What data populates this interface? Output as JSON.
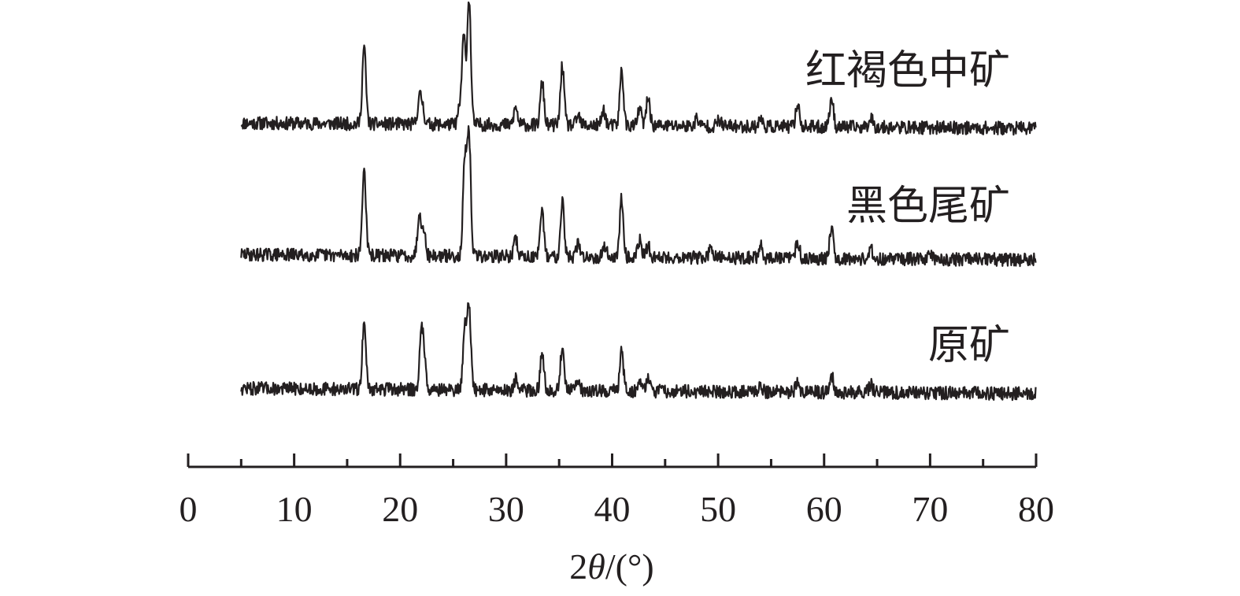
{
  "chart_data": {
    "type": "line",
    "title": "",
    "xlabel_parts": {
      "prefix": "2",
      "symbol": "θ",
      "suffix": "/(°)"
    },
    "ylabel": "",
    "xlim": [
      0,
      80
    ],
    "x_ticks": [
      0,
      10,
      20,
      30,
      40,
      50,
      60,
      70,
      80
    ],
    "x_minor_ticks": [
      5,
      15,
      25,
      35,
      45,
      55,
      65,
      75
    ],
    "x_range_measured": [
      5,
      80
    ],
    "grid": false,
    "legend": "none",
    "series": [
      {
        "name": "红褐色中矿",
        "baseline": 12,
        "peaks": [
          {
            "x": 16.6,
            "y": 98
          },
          {
            "x": 21.8,
            "y": 30
          },
          {
            "x": 22.1,
            "y": 22
          },
          {
            "x": 25.6,
            "y": 18
          },
          {
            "x": 26.0,
            "y": 110
          },
          {
            "x": 26.5,
            "y": 160
          },
          {
            "x": 30.9,
            "y": 22
          },
          {
            "x": 33.4,
            "y": 54
          },
          {
            "x": 35.3,
            "y": 76
          },
          {
            "x": 36.8,
            "y": 12
          },
          {
            "x": 39.2,
            "y": 20
          },
          {
            "x": 40.9,
            "y": 70
          },
          {
            "x": 42.6,
            "y": 22
          },
          {
            "x": 43.4,
            "y": 36
          },
          {
            "x": 48.0,
            "y": 10
          },
          {
            "x": 50.1,
            "y": 8
          },
          {
            "x": 54.0,
            "y": 10
          },
          {
            "x": 57.5,
            "y": 30
          },
          {
            "x": 60.7,
            "y": 38
          },
          {
            "x": 64.4,
            "y": 14
          }
        ]
      },
      {
        "name": "黑色尾矿",
        "baseline": 12,
        "peaks": [
          {
            "x": 16.6,
            "y": 110
          },
          {
            "x": 21.8,
            "y": 50
          },
          {
            "x": 22.2,
            "y": 36
          },
          {
            "x": 26.1,
            "y": 120
          },
          {
            "x": 26.5,
            "y": 150
          },
          {
            "x": 30.9,
            "y": 22
          },
          {
            "x": 33.4,
            "y": 56
          },
          {
            "x": 35.3,
            "y": 72
          },
          {
            "x": 36.8,
            "y": 16
          },
          {
            "x": 39.3,
            "y": 14
          },
          {
            "x": 40.9,
            "y": 76
          },
          {
            "x": 42.6,
            "y": 22
          },
          {
            "x": 43.4,
            "y": 14
          },
          {
            "x": 49.3,
            "y": 10
          },
          {
            "x": 54.0,
            "y": 16
          },
          {
            "x": 57.5,
            "y": 22
          },
          {
            "x": 60.7,
            "y": 42
          },
          {
            "x": 64.4,
            "y": 12
          },
          {
            "x": 70.0,
            "y": 8
          }
        ]
      },
      {
        "name": "原矿",
        "baseline": 12,
        "peaks": [
          {
            "x": 16.6,
            "y": 86
          },
          {
            "x": 22.0,
            "y": 70
          },
          {
            "x": 22.3,
            "y": 36
          },
          {
            "x": 26.1,
            "y": 80
          },
          {
            "x": 26.5,
            "y": 106
          },
          {
            "x": 30.9,
            "y": 14
          },
          {
            "x": 33.4,
            "y": 48
          },
          {
            "x": 35.3,
            "y": 56
          },
          {
            "x": 36.8,
            "y": 12
          },
          {
            "x": 40.9,
            "y": 50
          },
          {
            "x": 42.6,
            "y": 14
          },
          {
            "x": 43.4,
            "y": 18
          },
          {
            "x": 54.0,
            "y": 10
          },
          {
            "x": 57.5,
            "y": 14
          },
          {
            "x": 60.7,
            "y": 22
          },
          {
            "x": 64.4,
            "y": 10
          }
        ]
      }
    ]
  }
}
